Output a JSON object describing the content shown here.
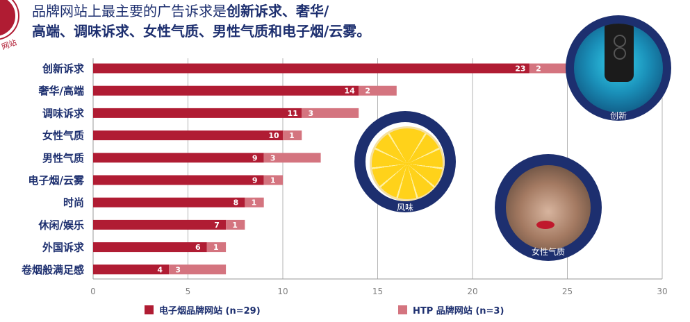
{
  "title": {
    "line1_prefix": "品牌网站上最主要的广告诉求是",
    "line1_bold": "创新诉求、奢华/",
    "line2": "高端、调味诉求、女性气质、男性气质和电子烟/云雾。"
  },
  "logo": {
    "text": "网站"
  },
  "colors": {
    "series1": "#b01c33",
    "series2": "#d4747f",
    "navy": "#1d2f6f",
    "grid": "#b3b3b3"
  },
  "chart_data": {
    "type": "bar",
    "orientation": "horizontal",
    "stacked": true,
    "categories": [
      "创新诉求",
      "奢华/高端",
      "调味诉求",
      "女性气质",
      "男性气质",
      "电子烟/云雾",
      "时尚",
      "休闲/娱乐",
      "外国诉求",
      "卷烟般满足感"
    ],
    "series": [
      {
        "name": "电子烟品牌网站 (n=29)",
        "values": [
          23,
          14,
          11,
          10,
          9,
          9,
          8,
          7,
          6,
          4
        ]
      },
      {
        "name": "HTP 品牌网站 (n=3)",
        "values": [
          2,
          2,
          3,
          1,
          3,
          1,
          1,
          1,
          1,
          3
        ]
      }
    ],
    "xlim": [
      0,
      30
    ],
    "xticks": [
      0,
      5,
      10,
      15,
      20,
      25,
      30
    ],
    "grid": true,
    "legend_position": "bottom"
  },
  "badges": [
    {
      "label": "创新",
      "icon": "device-image"
    },
    {
      "label": "风味",
      "icon": "lemon-image"
    },
    {
      "label": "女性气质",
      "icon": "woman-face-image"
    }
  ]
}
